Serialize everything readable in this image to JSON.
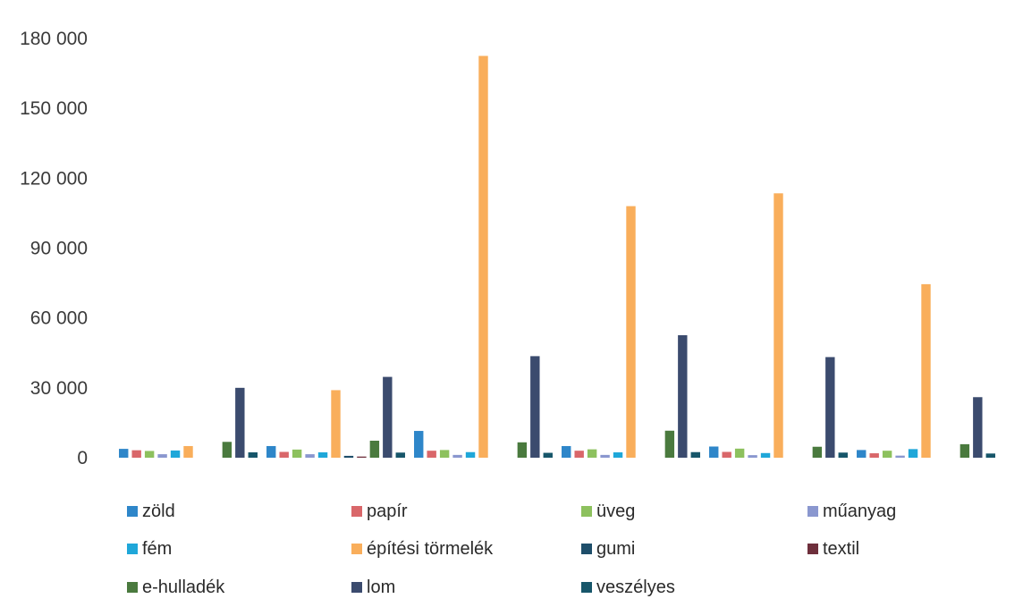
{
  "chart_data": {
    "type": "bar",
    "title": "",
    "xlabel": "",
    "ylabel": "",
    "categories": [
      "",
      "",
      "",
      "",
      "",
      ""
    ],
    "ylim": [
      0,
      180000
    ],
    "yticks": [
      0,
      30000,
      60000,
      90000,
      120000,
      150000,
      180000
    ],
    "ytick_labels": [
      "0",
      "30 000",
      "60 000",
      "90 000",
      "120 000",
      "150 000",
      "180 000"
    ],
    "grid": false,
    "legend_position": "bottom",
    "series": [
      {
        "name": "zöld",
        "color": "#2E86C9",
        "values": [
          3800,
          5000,
          11500,
          5000,
          4800,
          3300
        ]
      },
      {
        "name": "papír",
        "color": "#D9676A",
        "values": [
          3200,
          2500,
          3000,
          3000,
          2500,
          1900
        ]
      },
      {
        "name": "üveg",
        "color": "#8DC15E",
        "values": [
          2900,
          3500,
          3300,
          3600,
          3900,
          3000
        ]
      },
      {
        "name": "műanyag",
        "color": "#8A97CF",
        "values": [
          1500,
          1500,
          1200,
          1200,
          1100,
          900
        ]
      },
      {
        "name": "fém",
        "color": "#1FA7D9",
        "values": [
          3100,
          2300,
          2400,
          2300,
          2000,
          3700
        ]
      },
      {
        "name": "építési törmelék",
        "color": "#F9AE5B",
        "values": [
          5000,
          29000,
          172500,
          108000,
          113500,
          74500
        ]
      },
      {
        "name": "gumi",
        "color": "#1E4E6A",
        "values": [
          0,
          800,
          0,
          0,
          0,
          0
        ]
      },
      {
        "name": "textil",
        "color": "#6E2F3C",
        "values": [
          0,
          500,
          0,
          0,
          0,
          0
        ]
      },
      {
        "name": "e-hulladék",
        "color": "#4A7A3E",
        "values": [
          6800,
          7300,
          6600,
          11600,
          4700,
          5800
        ]
      },
      {
        "name": "lom",
        "color": "#3B4B6E",
        "values": [
          30000,
          34700,
          43600,
          52600,
          43200,
          26000
        ]
      },
      {
        "name": "veszélyes",
        "color": "#17566A",
        "values": [
          2300,
          2200,
          2100,
          2400,
          2200,
          1800
        ]
      }
    ]
  }
}
